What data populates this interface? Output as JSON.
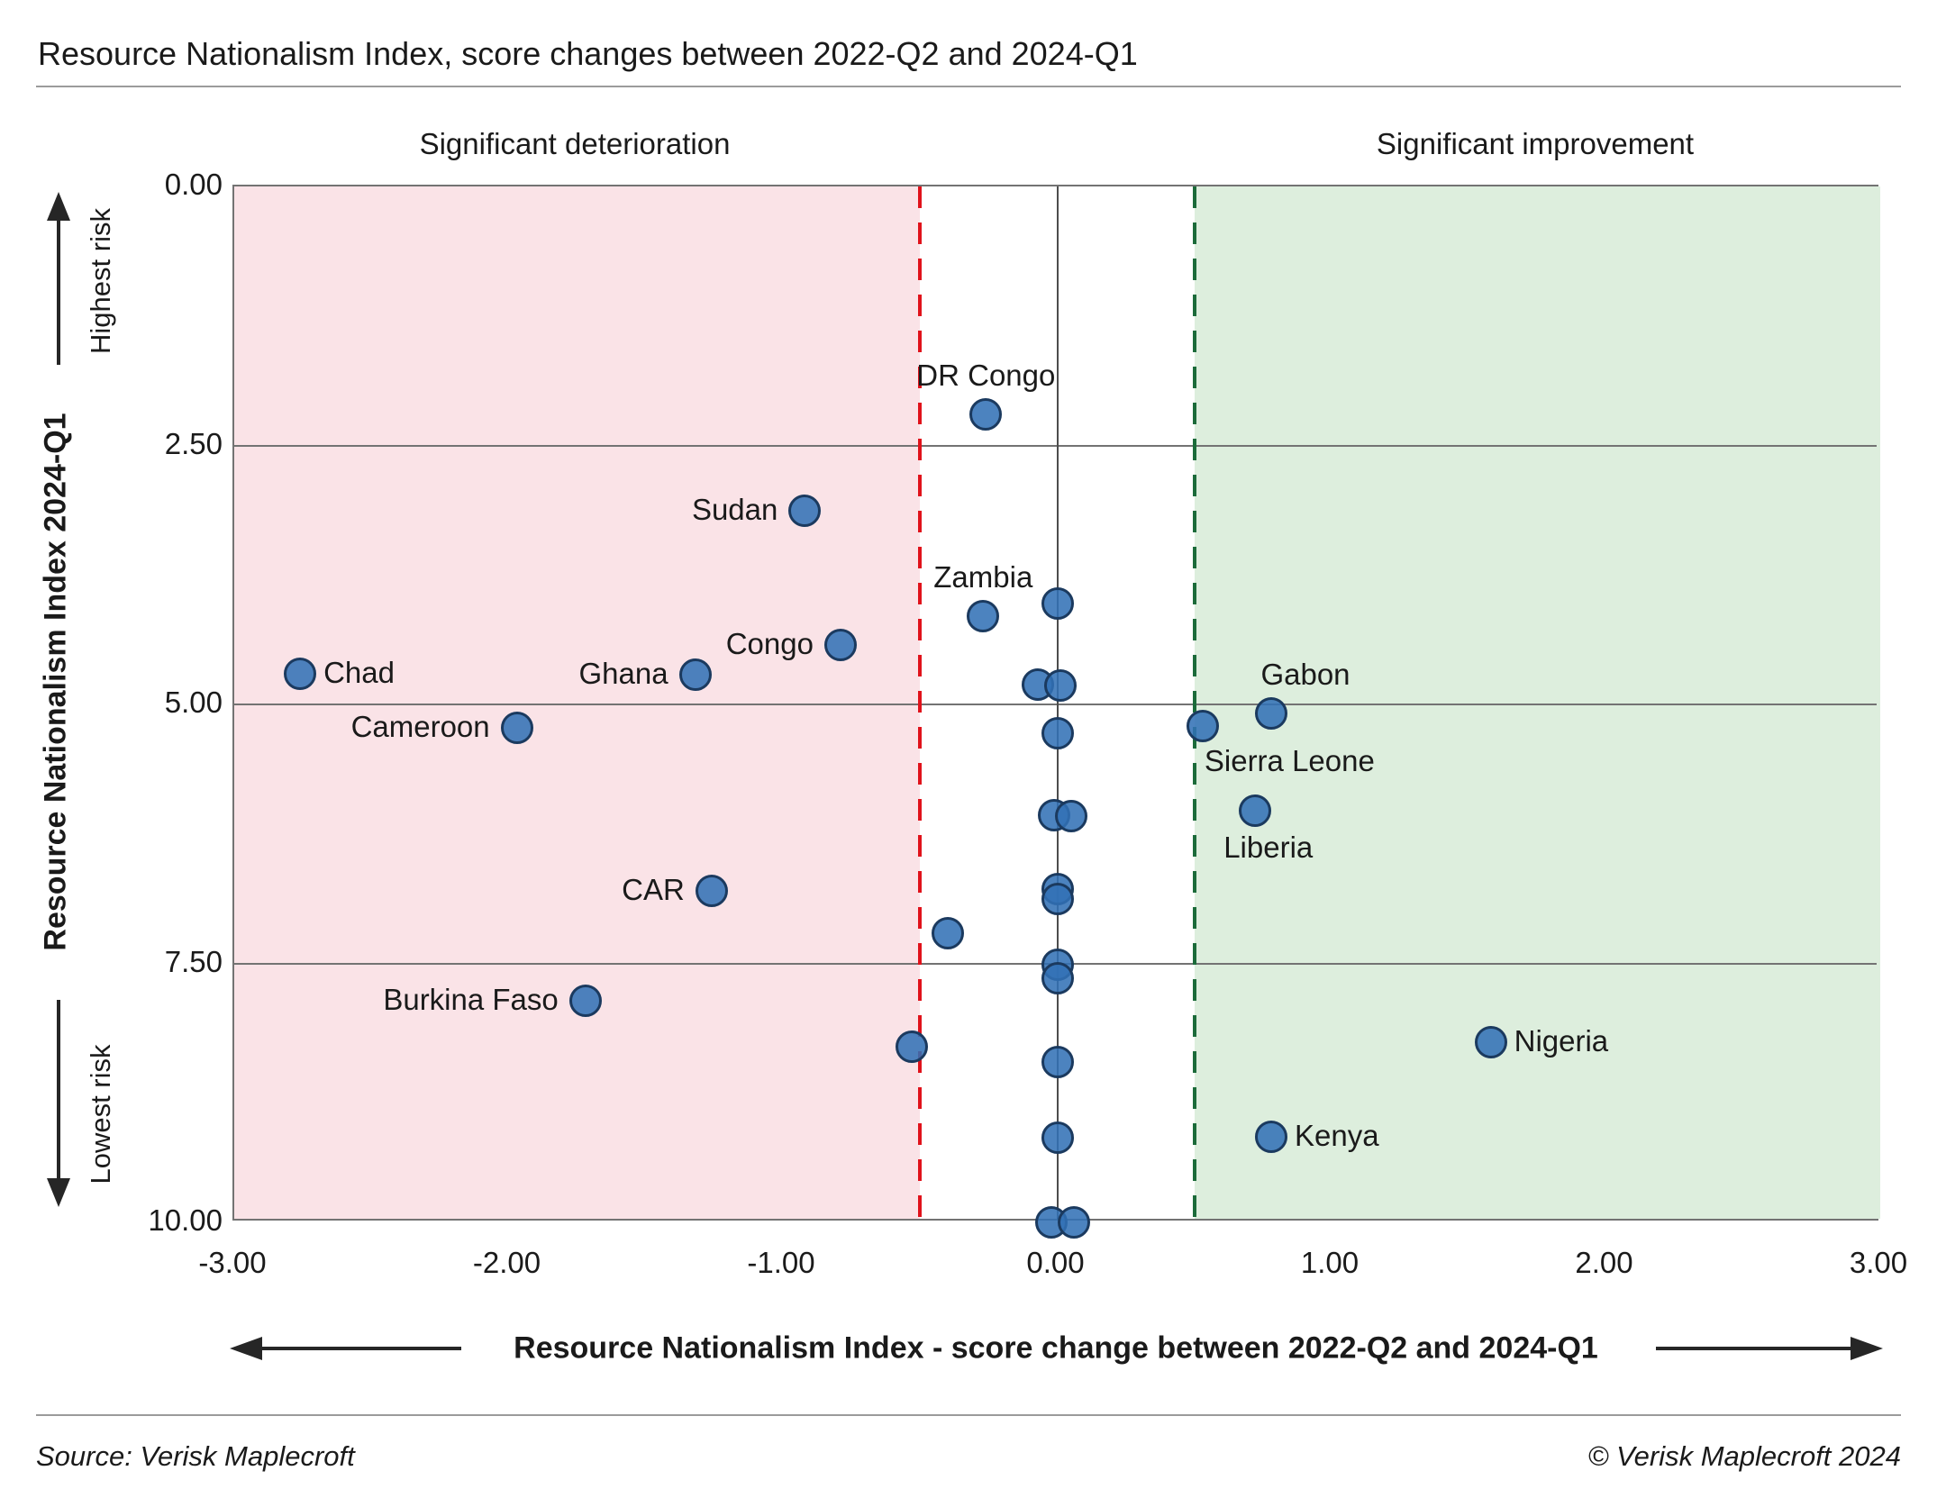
{
  "title": "Resource Nationalism Index, score changes between 2022-Q2 and 2024-Q1",
  "region_labels": {
    "deterioration": "Significant deterioration",
    "improvement": "Significant improvement"
  },
  "y_axis": {
    "title": "Resource Nationalism Index 2024-Q1",
    "top_label": "Highest risk",
    "bottom_label": "Lowest risk"
  },
  "x_axis": {
    "title": "Resource Nationalism Index - score change between 2022-Q2 and 2024-Q1"
  },
  "footer": {
    "source": "Source: Verisk Maplecroft",
    "copyright": "© Verisk Maplecroft 2024"
  },
  "colors": {
    "dot_fill": "#3171b5",
    "dot_stroke": "#1b3a5f",
    "band_pink": "#fae3e7",
    "band_green": "#ddeedd",
    "threshold_red": "#e0121b",
    "threshold_green": "#1c6b3a",
    "grid": "#737373",
    "zero_line": "#4d4d4d",
    "text": "#1a1a1a"
  },
  "chart_data": {
    "type": "scatter",
    "xlabel": "Resource Nationalism Index - score change between 2022-Q2 and 2024-Q1",
    "ylabel": "Resource Nationalism Index 2024-Q1",
    "x_range": [
      -3,
      3
    ],
    "y_range": [
      0,
      10
    ],
    "y_axis_inverted_note": "0.00 (highest risk) at top, 10.00 (lowest risk) at bottom",
    "x_ticks": [
      "-3.00",
      "-2.00",
      "-1.00",
      "0.00",
      "1.00",
      "2.00",
      "3.00"
    ],
    "y_ticks": [
      "0.00",
      "2.50",
      "5.00",
      "7.50",
      "10.00"
    ],
    "thresholds": {
      "deterioration_x": -0.5,
      "improvement_x": 0.5
    },
    "grid": true,
    "points": [
      {
        "name": "DR Congo",
        "x": -0.26,
        "y": 2.2,
        "label_pos": "above"
      },
      {
        "name": "Sudan",
        "x": -0.92,
        "y": 3.13,
        "label_pos": "left"
      },
      {
        "name": "Zambia",
        "x": -0.27,
        "y": 4.15,
        "label_pos": "above"
      },
      {
        "name": "",
        "x": 0.0,
        "y": 4.03
      },
      {
        "name": "Congo",
        "x": -0.79,
        "y": 4.43,
        "label_pos": "left"
      },
      {
        "name": "Chad",
        "x": -2.76,
        "y": 4.7,
        "label_pos": "right"
      },
      {
        "name": "Ghana",
        "x": -1.32,
        "y": 4.71,
        "label_pos": "left"
      },
      {
        "name": "",
        "x": -0.07,
        "y": 4.81
      },
      {
        "name": "",
        "x": 0.01,
        "y": 4.82
      },
      {
        "name": "Gabon",
        "x": 0.78,
        "y": 5.09,
        "label_pos": "above",
        "label_dx": 38
      },
      {
        "name": "Sierra Leone",
        "x": 0.53,
        "y": 5.21,
        "label_pos": "below-right"
      },
      {
        "name": "Cameroon",
        "x": -1.97,
        "y": 5.23,
        "label_pos": "left"
      },
      {
        "name": "",
        "x": 0.0,
        "y": 5.28
      },
      {
        "name": "Liberia",
        "x": 0.72,
        "y": 6.03,
        "label_pos": "below",
        "label_dx": 15
      },
      {
        "name": "",
        "x": -0.01,
        "y": 6.07
      },
      {
        "name": "",
        "x": 0.05,
        "y": 6.08
      },
      {
        "name": "",
        "x": 0.0,
        "y": 6.78
      },
      {
        "name": "CAR",
        "x": -1.26,
        "y": 6.8,
        "label_pos": "left"
      },
      {
        "name": "",
        "x": 0.0,
        "y": 6.88
      },
      {
        "name": "",
        "x": -0.4,
        "y": 7.21
      },
      {
        "name": "",
        "x": 0.0,
        "y": 7.51
      },
      {
        "name": "",
        "x": 0.0,
        "y": 7.64
      },
      {
        "name": "Burkina Faso",
        "x": -1.72,
        "y": 7.86,
        "label_pos": "left"
      },
      {
        "name": "Nigeria",
        "x": 1.58,
        "y": 8.26,
        "label_pos": "right"
      },
      {
        "name": "",
        "x": -0.53,
        "y": 8.3
      },
      {
        "name": "",
        "x": 0.0,
        "y": 8.45
      },
      {
        "name": "Kenya",
        "x": 0.78,
        "y": 9.17,
        "label_pos": "right"
      },
      {
        "name": "",
        "x": 0.0,
        "y": 9.18
      },
      {
        "name": "",
        "x": -0.02,
        "y": 10.0
      },
      {
        "name": "",
        "x": 0.06,
        "y": 10.0
      }
    ]
  }
}
